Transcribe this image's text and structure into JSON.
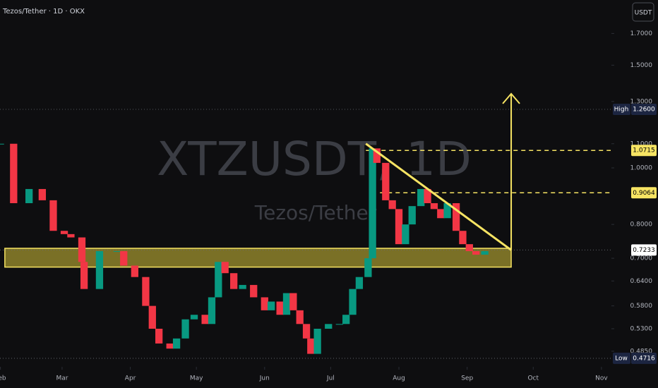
{
  "chart_data": {
    "type": "candlestick",
    "header": "Tezos/Tether · 1D · OKX",
    "currency": "USDT",
    "watermark": "XTZUSDT, 1D",
    "watermark_sub": "Tezos/Tether",
    "log_scale": true,
    "up_color": "#089981",
    "down_color": "#f23645",
    "x": [
      32,
      38,
      45,
      51,
      56,
      61,
      64,
      69,
      70,
      77,
      85,
      88,
      93,
      98,
      101,
      104,
      109,
      112,
      116,
      120,
      125,
      128,
      131,
      134,
      138,
      142,
      147,
      152,
      155,
      159,
      162,
      165,
      168,
      171,
      173,
      176,
      181,
      186,
      189,
      192,
      195,
      199,
      201,
      203,
      207,
      210,
      213,
      216,
      219,
      223,
      226,
      229,
      232,
      235,
      239,
      242,
      245,
      248,
      252
    ],
    "values": [
      1.1,
      0.87,
      0.92,
      0.88,
      0.78,
      0.77,
      0.76,
      0.69,
      0.62,
      0.72,
      0.72,
      0.68,
      0.65,
      0.58,
      0.53,
      0.5,
      0.49,
      0.51,
      0.55,
      0.56,
      0.54,
      0.6,
      0.69,
      0.66,
      0.62,
      0.63,
      0.6,
      0.57,
      0.59,
      0.56,
      0.61,
      0.57,
      0.54,
      0.51,
      0.48,
      0.53,
      0.54,
      0.54,
      0.56,
      0.62,
      0.65,
      0.7,
      1.08,
      1.02,
      0.88,
      0.85,
      0.74,
      0.8,
      0.86,
      0.92,
      0.87,
      0.85,
      0.82,
      0.87,
      0.78,
      0.74,
      0.72,
      0.71,
      0.72
    ],
    "xlim": [
      31.8,
      309.2
    ],
    "xticks": [
      {
        "value": 32,
        "label": "Feb"
      },
      {
        "value": 60,
        "label": "Mar"
      },
      {
        "value": 91,
        "label": "Apr"
      },
      {
        "value": 121,
        "label": "May"
      },
      {
        "value": 152,
        "label": "Jun"
      },
      {
        "value": 182,
        "label": "Jul"
      },
      {
        "value": 213,
        "label": "Aug"
      },
      {
        "value": 244,
        "label": "Sep"
      },
      {
        "value": 274,
        "label": "Oct"
      },
      {
        "value": 305,
        "label": "Nov"
      }
    ],
    "ylim": [
      0.456,
      1.94
    ],
    "yticks": [
      {
        "value": 1.7,
        "label": "1.7000"
      },
      {
        "value": 1.5,
        "label": "1.5000"
      },
      {
        "value": 1.3,
        "label": "1.3000"
      },
      {
        "value": 1.1,
        "label": "1.1000"
      },
      {
        "value": 1,
        "label": "1.0000"
      },
      {
        "value": 0.8,
        "label": "0.8000"
      },
      {
        "value": 0.7,
        "label": "0.7000"
      },
      {
        "value": 0.64,
        "label": "0.6400"
      },
      {
        "value": 0.58,
        "label": "0.5800"
      },
      {
        "value": 0.53,
        "label": "0.5300"
      },
      {
        "value": 0.485,
        "label": "0.4850"
      }
    ],
    "price_tags": [
      {
        "name": "High",
        "value": 1.26,
        "label": "1.2600",
        "style": "dark"
      },
      {
        "value": 1.0715,
        "label": "1.0715",
        "style": "yellow"
      },
      {
        "value": 0.9064,
        "label": "0.9064",
        "style": "yellow"
      },
      {
        "value": 0.7233,
        "label": "0.7233",
        "style": "outline"
      },
      {
        "name": "Low",
        "value": 0.4716,
        "label": "0.4716",
        "style": "dark"
      }
    ],
    "zone": {
      "x": [
        34,
        264
      ],
      "y": [
        0.676,
        0.728
      ]
    },
    "trendline": {
      "x": [
        198,
        264
      ],
      "y": [
        1.1,
        0.723
      ]
    },
    "arrow": {
      "x": [
        264,
        264
      ],
      "y": [
        0.723,
        1.34
      ]
    }
  }
}
